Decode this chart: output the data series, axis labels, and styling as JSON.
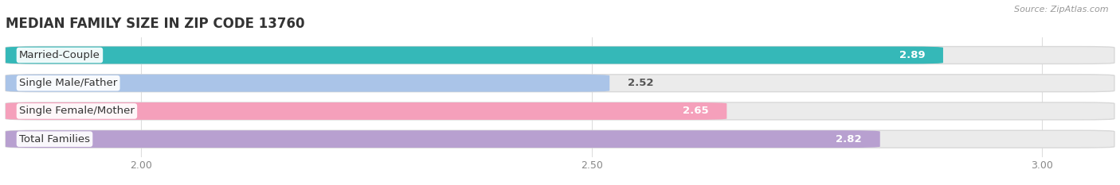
{
  "title": "MEDIAN FAMILY SIZE IN ZIP CODE 13760",
  "source": "Source: ZipAtlas.com",
  "categories": [
    "Married-Couple",
    "Single Male/Father",
    "Single Female/Mother",
    "Total Families"
  ],
  "values": [
    2.89,
    2.52,
    2.65,
    2.82
  ],
  "bar_colors": [
    "#35b8b8",
    "#aac4e8",
    "#f5a0bb",
    "#b8a0d0"
  ],
  "bar_bg_colors": [
    "#ebebeb",
    "#ebebeb",
    "#ebebeb",
    "#ebebeb"
  ],
  "xlim_data": [
    1.85,
    3.08
  ],
  "xticks": [
    2.0,
    2.5,
    3.0
  ],
  "label_fontsize": 9.5,
  "value_fontsize": 9.5,
  "title_fontsize": 12,
  "bar_height": 0.62,
  "background_color": "#ffffff",
  "value_colors": [
    "#ffffff",
    "#666666",
    "#ffffff",
    "#ffffff"
  ],
  "value_inside": [
    true,
    false,
    true,
    true
  ]
}
